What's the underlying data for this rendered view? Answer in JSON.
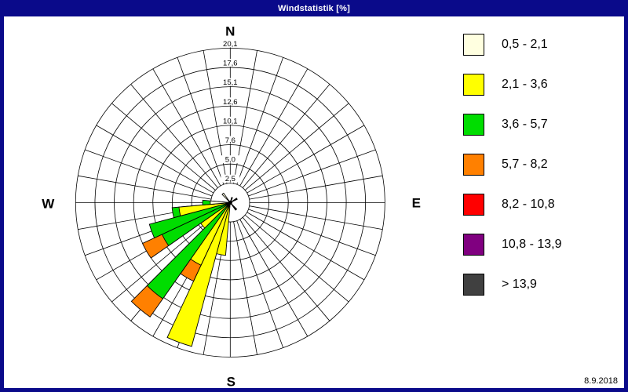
{
  "window": {
    "title": "Windstatistik [%]",
    "title_bg": "#0a0a8a",
    "date": "8.9.2018"
  },
  "legend": {
    "items": [
      {
        "label": "0,5 - 2,1",
        "color": "#FFFFE0"
      },
      {
        "label": "2,1 - 3,6",
        "color": "#FFFF00"
      },
      {
        "label": "3,6 - 5,7",
        "color": "#00DD00"
      },
      {
        "label": "5,7 - 8,2",
        "color": "#FF8000"
      },
      {
        "label": "8,2 - 10,8",
        "color": "#FF0000"
      },
      {
        "label": "10,8 - 13,9",
        "color": "#800080"
      },
      {
        "label": "> 13,9",
        "color": "#404040"
      }
    ]
  },
  "chart_data": {
    "type": "windrose-stacked-bar",
    "title": "Windstatistik [%]",
    "units": "%",
    "sector_count": 36,
    "sector_width_deg": 10,
    "axis_max": 20.13,
    "rings": [
      {
        "value": 2.52,
        "label": "2,5"
      },
      {
        "value": 5.03,
        "label": "5,0"
      },
      {
        "value": 7.55,
        "label": "7,6"
      },
      {
        "value": 10.07,
        "label": "10,1"
      },
      {
        "value": 12.58,
        "label": "12,6"
      },
      {
        "value": 15.1,
        "label": "15,1"
      },
      {
        "value": 17.61,
        "label": "17,6"
      },
      {
        "value": 20.13,
        "label": "20,1"
      }
    ],
    "compass": {
      "n": "N",
      "e": "E",
      "s": "S",
      "w": "W"
    },
    "speed_bins": [
      {
        "label": "0,5 - 2,1",
        "color": "#FFFFE0"
      },
      {
        "label": "2,1 - 3,6",
        "color": "#FFFF00"
      },
      {
        "label": "3,6 - 5,7",
        "color": "#00DD00"
      },
      {
        "label": "5,7 - 8,2",
        "color": "#FF8000"
      },
      {
        "label": "8,2 - 10,8",
        "color": "#FF0000"
      },
      {
        "label": "10,8 - 13,9",
        "color": "#800080"
      },
      {
        "label": "> 13,9",
        "color": "#404040"
      }
    ],
    "bars": [
      {
        "dir": 190,
        "stack": [
          {
            "bin": 1,
            "to": 6.9
          }
        ]
      },
      {
        "dir": 200,
        "stack": [
          {
            "bin": 1,
            "to": 19.4
          }
        ]
      },
      {
        "dir": 210,
        "stack": [
          {
            "bin": 1,
            "to": 9.0
          },
          {
            "bin": 3,
            "to": 11.3
          }
        ]
      },
      {
        "dir": 220,
        "stack": [
          {
            "bin": 2,
            "to": 15.3
          },
          {
            "bin": 3,
            "to": 18.2
          }
        ]
      },
      {
        "dir": 230,
        "stack": [
          {
            "bin": 1,
            "to": 4.7
          }
        ]
      },
      {
        "dir": 240,
        "stack": [
          {
            "bin": 2,
            "to": 9.8
          },
          {
            "bin": 3,
            "to": 12.6
          }
        ]
      },
      {
        "dir": 250,
        "stack": [
          {
            "bin": 2,
            "to": 10.9
          }
        ]
      },
      {
        "dir": 260,
        "stack": [
          {
            "bin": 1,
            "to": 6.7
          },
          {
            "bin": 2,
            "to": 7.6
          }
        ]
      },
      {
        "dir": 270,
        "stack": [
          {
            "bin": 0,
            "to": 2.6
          },
          {
            "bin": 2,
            "to": 3.6
          }
        ]
      },
      {
        "dir": 320,
        "stack": [
          {
            "bin": 0,
            "to": 1.5
          }
        ]
      },
      {
        "dir": 20,
        "stack": [
          {
            "bin": -1,
            "to": 0.7
          }
        ]
      },
      {
        "dir": 60,
        "stack": [
          {
            "bin": -1,
            "to": 1.0
          }
        ]
      },
      {
        "dir": 140,
        "stack": [
          {
            "bin": -1,
            "to": 1.2
          }
        ]
      }
    ],
    "micro_bar_color": "#151515",
    "grid_color": "#000000",
    "background": "#ffffff"
  }
}
